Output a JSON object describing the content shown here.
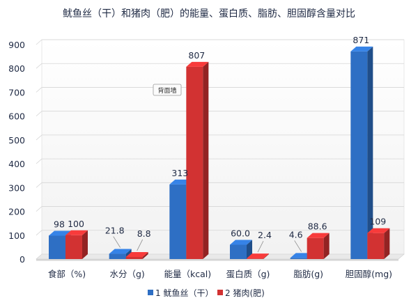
{
  "chart_data": {
    "type": "bar",
    "title": "鱿鱼丝（干）和猪肉（肥）的能量、蛋白质、脂肪、胆固醇含量对比",
    "categories": [
      "食部（%)",
      "水分（g)",
      "能量（kcal)",
      "蛋白质（g)",
      "脂肪(g)",
      "胆固醇(mg)"
    ],
    "series": [
      {
        "name": "1 鱿鱼丝（干）",
        "color": "#2e6fc4",
        "values": [
          98,
          21.8,
          313,
          60.0,
          4.6,
          871
        ],
        "labels": [
          "98",
          "21.8",
          "313",
          "60.0",
          "4.6",
          "871"
        ]
      },
      {
        "name": "2 猪肉(肥)",
        "color": "#d23232",
        "values": [
          100,
          8.8,
          807,
          2.4,
          88.6,
          109
        ],
        "labels": [
          "100",
          "8.8",
          "807",
          "2.4",
          "88.6",
          "109"
        ]
      }
    ],
    "ylim": [
      0,
      900
    ],
    "yticks": [
      0,
      100,
      200,
      300,
      400,
      500,
      600,
      700,
      800,
      900
    ],
    "grid": true,
    "legend_position": "bottom",
    "annotation": "背面墙"
  }
}
